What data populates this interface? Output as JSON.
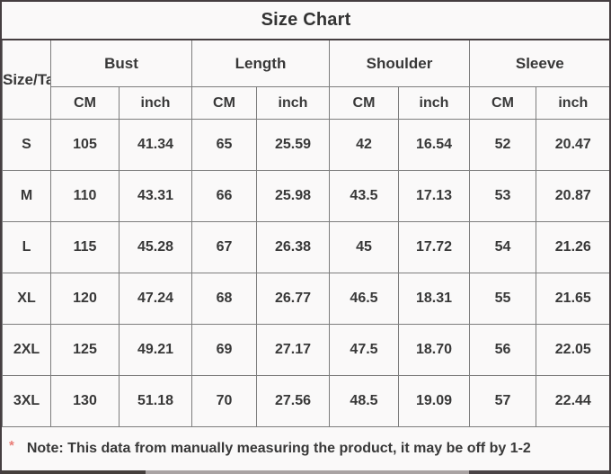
{
  "chart_data": {
    "type": "table",
    "title": "Size Chart",
    "corner_label": "Size/Ta",
    "column_groups": [
      {
        "label": "Bust"
      },
      {
        "label": "Length"
      },
      {
        "label": "Shoulder"
      },
      {
        "label": "Sleeve"
      }
    ],
    "sub_headers": [
      "CM",
      "inch",
      "CM",
      "inch",
      "CM",
      "inch",
      "CM",
      "inch"
    ],
    "rows": [
      {
        "size": "S",
        "values": [
          "105",
          "41.34",
          "65",
          "25.59",
          "42",
          "16.54",
          "52",
          "20.47"
        ]
      },
      {
        "size": "M",
        "values": [
          "110",
          "43.31",
          "66",
          "25.98",
          "43.5",
          "17.13",
          "53",
          "20.87"
        ]
      },
      {
        "size": "L",
        "values": [
          "115",
          "45.28",
          "67",
          "26.38",
          "45",
          "17.72",
          "54",
          "21.26"
        ]
      },
      {
        "size": "XL",
        "values": [
          "120",
          "47.24",
          "68",
          "26.77",
          "46.5",
          "18.31",
          "55",
          "21.65"
        ]
      },
      {
        "size": "2XL",
        "values": [
          "125",
          "49.21",
          "69",
          "27.17",
          "47.5",
          "18.70",
          "56",
          "22.05"
        ]
      },
      {
        "size": "3XL",
        "values": [
          "130",
          "51.18",
          "70",
          "27.56",
          "48.5",
          "19.09",
          "57",
          "22.44"
        ]
      }
    ]
  },
  "note": {
    "asterisk": "*",
    "text": "Note: This data from manually measuring the product, it may be off by 1-2"
  },
  "colors": {
    "outer_border": "#453e41",
    "grid_line": "#7d7d7d",
    "background": "#faf9f9",
    "text": "#383838",
    "asterisk_red": "#e97c76"
  }
}
